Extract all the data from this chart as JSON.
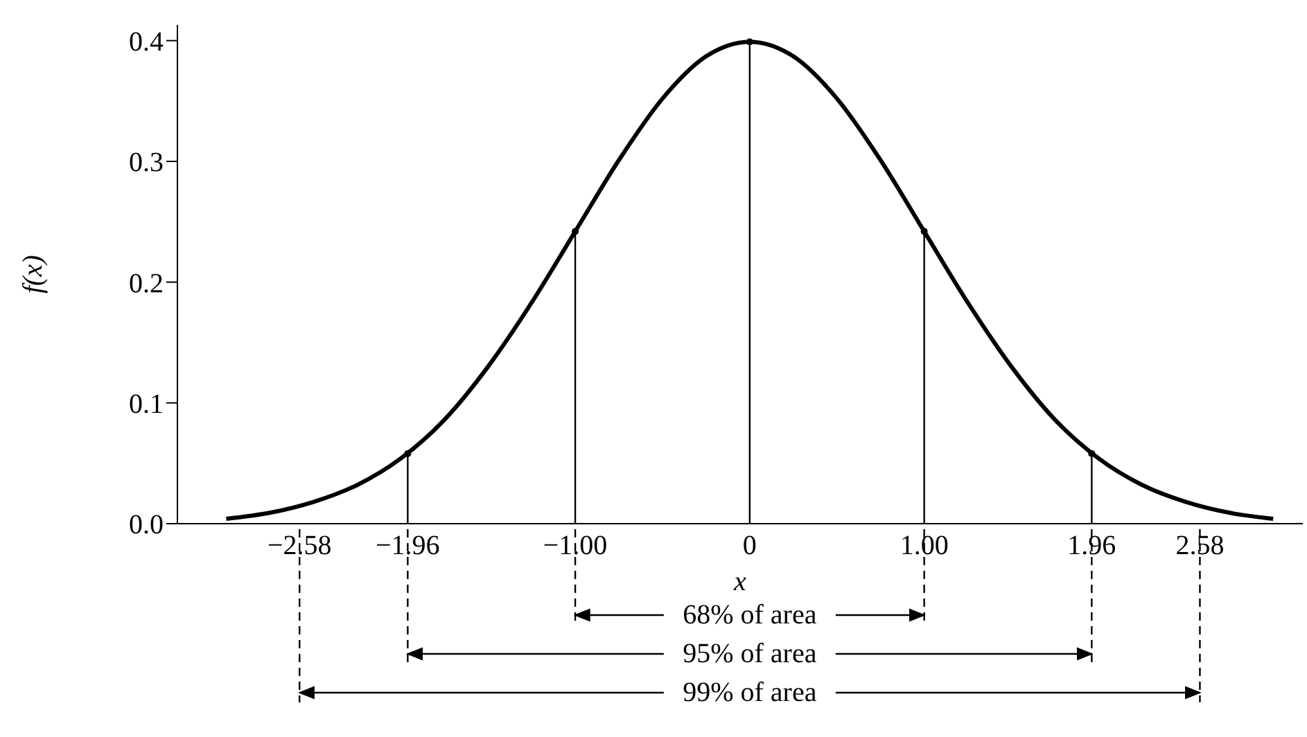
{
  "chart_data": {
    "type": "line",
    "xlabel": "x",
    "ylabel": "f(x)",
    "xlim": [
      -3.28,
      3.17
    ],
    "ylim": [
      0,
      0.413
    ],
    "xticks": [
      {
        "value": -2.58,
        "label": "−2.58"
      },
      {
        "value": -1.96,
        "label": "−1.96"
      },
      {
        "value": -1,
        "label": "−1.00"
      },
      0,
      {
        "value": 1,
        "label": "1.00"
      },
      {
        "value": 1.96,
        "label": "1.96"
      },
      {
        "value": 2.58,
        "label": "2.58"
      }
    ],
    "yticks": [
      {
        "value": 0,
        "label": "0.0"
      },
      {
        "value": 0.1,
        "label": "0.1"
      },
      {
        "value": 0.2,
        "label": "0.2"
      },
      {
        "value": 0.3,
        "label": "0.3"
      },
      {
        "value": 0.4,
        "label": "0.4"
      }
    ],
    "series": [
      {
        "color": "#000000",
        "marker": "none",
        "x": [
          -3,
          -2.75,
          -2.5,
          -2.25,
          -2,
          -1.75,
          -1.5,
          -1.25,
          -1,
          -0.75,
          -0.5,
          -0.25,
          0,
          0.25,
          0.5,
          0.75,
          1,
          1.25,
          1.5,
          1.75,
          2,
          2.25,
          2.5,
          2.75,
          3
        ],
        "values": [
          0.004,
          0.009,
          0.018,
          0.032,
          0.054,
          0.086,
          0.13,
          0.183,
          0.242,
          0.301,
          0.352,
          0.387,
          0.399,
          0.387,
          0.352,
          0.301,
          0.242,
          0.183,
          0.13,
          0.086,
          0.054,
          0.032,
          0.018,
          0.009,
          0.004
        ]
      },
      {
        "type": "lollipop",
        "color": "#000000",
        "x": [
          -1.96,
          -1,
          0,
          1,
          1.96
        ],
        "values": [
          0.058,
          0.242,
          0.399,
          0.242,
          0.058
        ]
      }
    ],
    "annotations": [
      "68% of area",
      "95% of area",
      "99% of area"
    ]
  }
}
